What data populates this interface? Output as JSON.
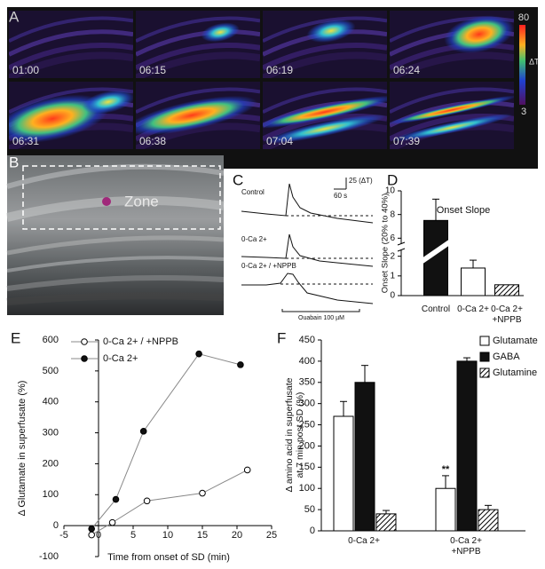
{
  "panel_labels": [
    "A",
    "B",
    "C",
    "D",
    "E",
    "F"
  ],
  "panel_a": {
    "timestamps": [
      "01:00",
      "06:15",
      "06:19",
      "06:24",
      "06:31",
      "06:38",
      "07:04",
      "07:39"
    ],
    "colorbar": {
      "max": "80",
      "unit": "ΔT",
      "min": "3"
    }
  },
  "panel_b": {
    "zone_label": "Zone"
  },
  "panel_c": {
    "traces": [
      "Control",
      "0-Ca 2+",
      "0-Ca 2+ / +NPPB"
    ],
    "scale_y": "25 (ΔT)",
    "scale_x": "60 s",
    "stimulus": "Ouabain 100 µM"
  },
  "chart_data": [
    {
      "type": "bar",
      "title": "Onset Slope",
      "y_label": "Onset Slope (20% to 40%)",
      "categories": [
        "Control",
        "0-Ca 2+",
        "0-Ca 2+\n+NPPB"
      ],
      "values": [
        7.5,
        1.4,
        0.55
      ],
      "errors": [
        1.8,
        0.4,
        null
      ],
      "colors": [
        "#111111",
        "#ffffff",
        "#ffffff"
      ],
      "hatch": [
        false,
        false,
        true
      ],
      "ylim": [
        0,
        10
      ],
      "ybreak": [
        2.3,
        5.5
      ],
      "yticks": [
        0,
        1,
        2,
        6,
        8,
        10
      ]
    },
    {
      "type": "line",
      "x_label": "Time from onset of SD (min)",
      "y_label": "Δ Glutamate in superfusate (%)",
      "series": [
        {
          "name": "0-Ca 2+ / +NPPB",
          "color": "#ffffff",
          "x": [
            -1,
            2,
            7,
            15,
            21.5
          ],
          "values": [
            -30,
            10,
            80,
            105,
            180
          ]
        },
        {
          "name": "0-Ca 2+",
          "color": "#111111",
          "x": [
            -1,
            2.5,
            6.5,
            14.5,
            20.5
          ],
          "values": [
            -10,
            85,
            305,
            555,
            520
          ]
        }
      ],
      "xlim": [
        -5,
        25
      ],
      "xticks": [
        -5,
        0,
        5,
        10,
        15,
        20,
        25
      ],
      "ylim": [
        -100,
        600
      ],
      "yticks": [
        -100,
        0,
        100,
        200,
        300,
        400,
        500,
        600
      ]
    },
    {
      "type": "grouped_bar",
      "y_label": [
        "Δ amino acid in superfusate",
        "at 7 min post SD (%)"
      ],
      "categories": [
        "0-Ca 2+",
        "0-Ca 2+\n+NPPB"
      ],
      "series": [
        {
          "name": "Glutamate",
          "color": "#ffffff",
          "hatch": false,
          "values": [
            270,
            100
          ],
          "errors": [
            35,
            30
          ]
        },
        {
          "name": "GABA",
          "color": "#111111",
          "hatch": false,
          "values": [
            350,
            400
          ],
          "errors": [
            40,
            8
          ]
        },
        {
          "name": "Glutamine",
          "color": "#ffffff",
          "hatch": true,
          "values": [
            40,
            50
          ],
          "errors": [
            8,
            10
          ]
        }
      ],
      "annotation": "**",
      "ylim": [
        0,
        450
      ],
      "yticks": [
        0,
        50,
        100,
        150,
        200,
        250,
        300,
        350,
        400,
        450
      ]
    }
  ]
}
